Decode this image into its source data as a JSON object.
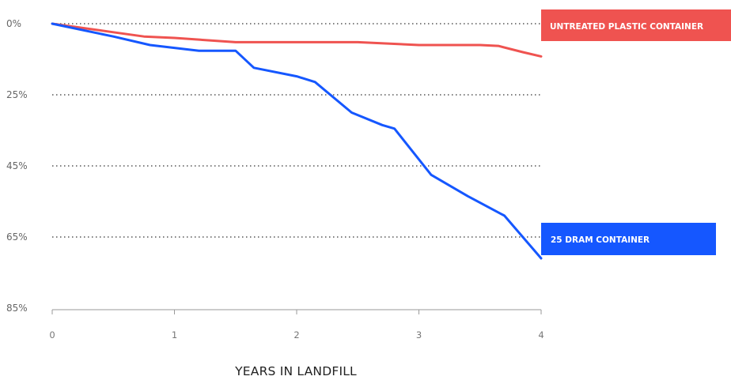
{
  "chart_data": {
    "type": "line",
    "xlabel": "YEARS IN LANDFILL",
    "ylabel": "",
    "x_ticks": [
      "0",
      "1",
      "2",
      "3",
      "4"
    ],
    "y_ticks": [
      "0%",
      "25%",
      "45%",
      "65%",
      "85%"
    ],
    "grid": "dotted horizontal",
    "series": [
      {
        "name": "UNTREATED PLASTIC CONTAINER",
        "color": "#ef5350",
        "x": [
          0,
          0.5,
          0.75,
          1.0,
          1.5,
          2.0,
          2.5,
          3.0,
          3.5,
          3.65,
          3.85,
          4.0
        ],
        "y": [
          0,
          3,
          4.5,
          5,
          6.5,
          6.5,
          6.5,
          7.5,
          7.5,
          7.8,
          10,
          11.5
        ]
      },
      {
        "name": "25 DRAM CONTAINER",
        "color": "#1557ff",
        "x": [
          0,
          0.5,
          0.8,
          1.2,
          1.5,
          1.65,
          2.0,
          2.15,
          2.45,
          2.7,
          2.8,
          3.1,
          3.4,
          3.7,
          4.0
        ],
        "y": [
          0,
          4.5,
          7.5,
          9.5,
          9.5,
          15.5,
          18.5,
          20.5,
          30,
          33.5,
          34.5,
          47.5,
          53.5,
          59,
          71
        ]
      }
    ]
  }
}
